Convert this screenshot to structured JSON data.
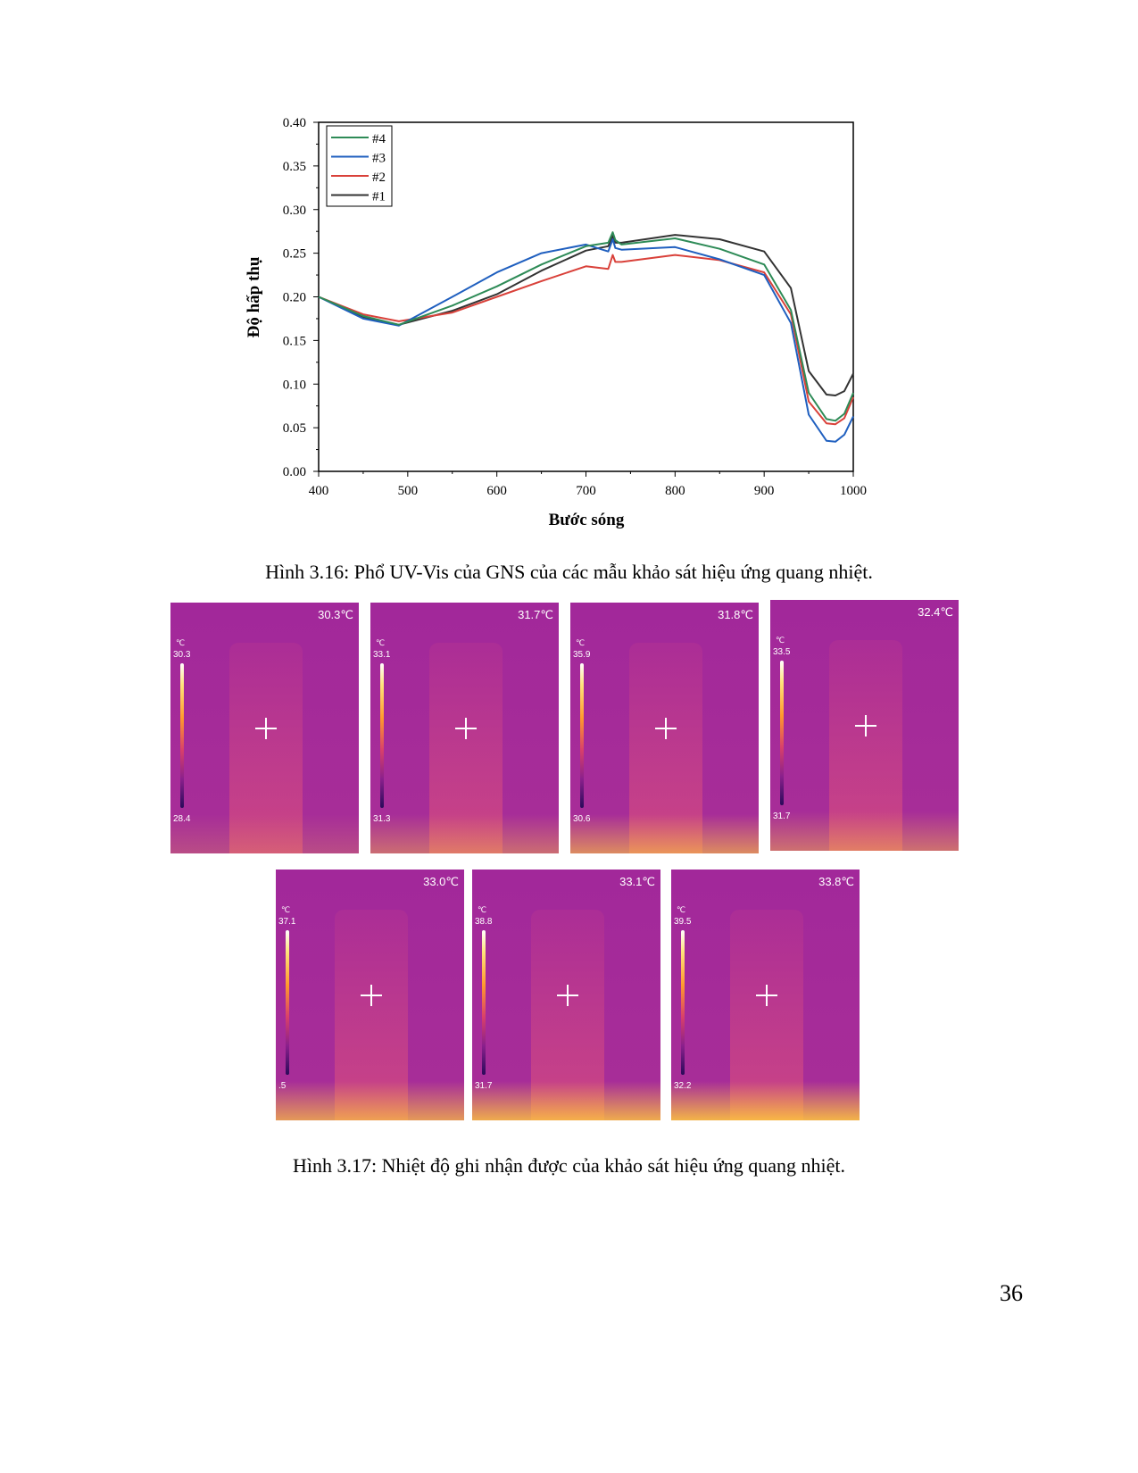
{
  "chart_data": {
    "type": "line",
    "xlabel": "Bước sóng",
    "ylabel": "Độ hấp thụ",
    "xlim": [
      400,
      1000
    ],
    "ylim": [
      0.0,
      0.4
    ],
    "xticks": [
      "400",
      "500",
      "600",
      "700",
      "800",
      "900",
      "1000"
    ],
    "yticks": [
      "0.00",
      "0.05",
      "0.10",
      "0.15",
      "0.20",
      "0.25",
      "0.30",
      "0.35",
      "0.40"
    ],
    "legend": [
      "#4",
      "#3",
      "#2",
      "#1"
    ],
    "legend_position": "top-left",
    "series": [
      {
        "name": "#4",
        "color": "#2e8b57",
        "x": [
          400,
          450,
          490,
          550,
          600,
          650,
          700,
          725,
          730,
          733,
          740,
          800,
          850,
          900,
          930,
          950,
          970,
          980,
          990,
          1000
        ],
        "y": [
          0.2,
          0.178,
          0.168,
          0.19,
          0.212,
          0.237,
          0.258,
          0.262,
          0.274,
          0.265,
          0.26,
          0.267,
          0.255,
          0.237,
          0.185,
          0.09,
          0.06,
          0.058,
          0.066,
          0.09
        ]
      },
      {
        "name": "#3",
        "color": "#1f5fbf",
        "x": [
          400,
          450,
          490,
          550,
          600,
          650,
          700,
          725,
          730,
          733,
          740,
          800,
          850,
          900,
          930,
          950,
          970,
          980,
          990,
          1000
        ],
        "y": [
          0.2,
          0.175,
          0.167,
          0.2,
          0.228,
          0.25,
          0.26,
          0.252,
          0.266,
          0.256,
          0.254,
          0.257,
          0.243,
          0.225,
          0.17,
          0.065,
          0.035,
          0.034,
          0.042,
          0.063
        ]
      },
      {
        "name": "#2",
        "color": "#d9413a",
        "x": [
          400,
          450,
          490,
          550,
          600,
          650,
          700,
          725,
          730,
          733,
          740,
          800,
          850,
          900,
          930,
          950,
          970,
          980,
          990,
          1000
        ],
        "y": [
          0.2,
          0.18,
          0.172,
          0.182,
          0.2,
          0.218,
          0.235,
          0.232,
          0.248,
          0.24,
          0.24,
          0.248,
          0.242,
          0.228,
          0.18,
          0.08,
          0.055,
          0.054,
          0.061,
          0.085
        ]
      },
      {
        "name": "#1",
        "color": "#333333",
        "x": [
          400,
          450,
          490,
          550,
          600,
          650,
          700,
          725,
          730,
          733,
          740,
          800,
          850,
          900,
          930,
          950,
          970,
          980,
          990,
          1000
        ],
        "y": [
          0.2,
          0.177,
          0.168,
          0.184,
          0.203,
          0.23,
          0.253,
          0.258,
          0.27,
          0.262,
          0.262,
          0.271,
          0.266,
          0.252,
          0.21,
          0.115,
          0.088,
          0.087,
          0.092,
          0.112
        ]
      }
    ]
  },
  "captions": {
    "fig316": "Hình 3.16: Phổ UV-Vis của GNS của các mẫu khảo sát hiệu ứng quang nhiệt.",
    "fig317": "Hình 3.17: Nhiệt độ ghi nhận được của khảo sát hiệu ứng quang nhiệt."
  },
  "thermal_images": [
    {
      "temp": "30.3℃",
      "unit": "℃",
      "max": "30.3",
      "min": "28.4"
    },
    {
      "temp": "31.7℃",
      "unit": "℃",
      "max": "33.1",
      "min": "31.3"
    },
    {
      "temp": "31.8℃",
      "unit": "℃",
      "max": "35.9",
      "min": "30.6"
    },
    {
      "temp": "32.4℃",
      "unit": "℃",
      "max": "33.5",
      "min": "31.7"
    },
    {
      "temp": "33.0℃",
      "unit": "℃",
      "max": "37.1",
      "min": ".5"
    },
    {
      "temp": "33.1℃",
      "unit": "℃",
      "max": "38.8",
      "min": "31.7"
    },
    {
      "temp": "33.8℃",
      "unit": "℃",
      "max": "39.5",
      "min": "32.2"
    }
  ],
  "page_number": "36"
}
